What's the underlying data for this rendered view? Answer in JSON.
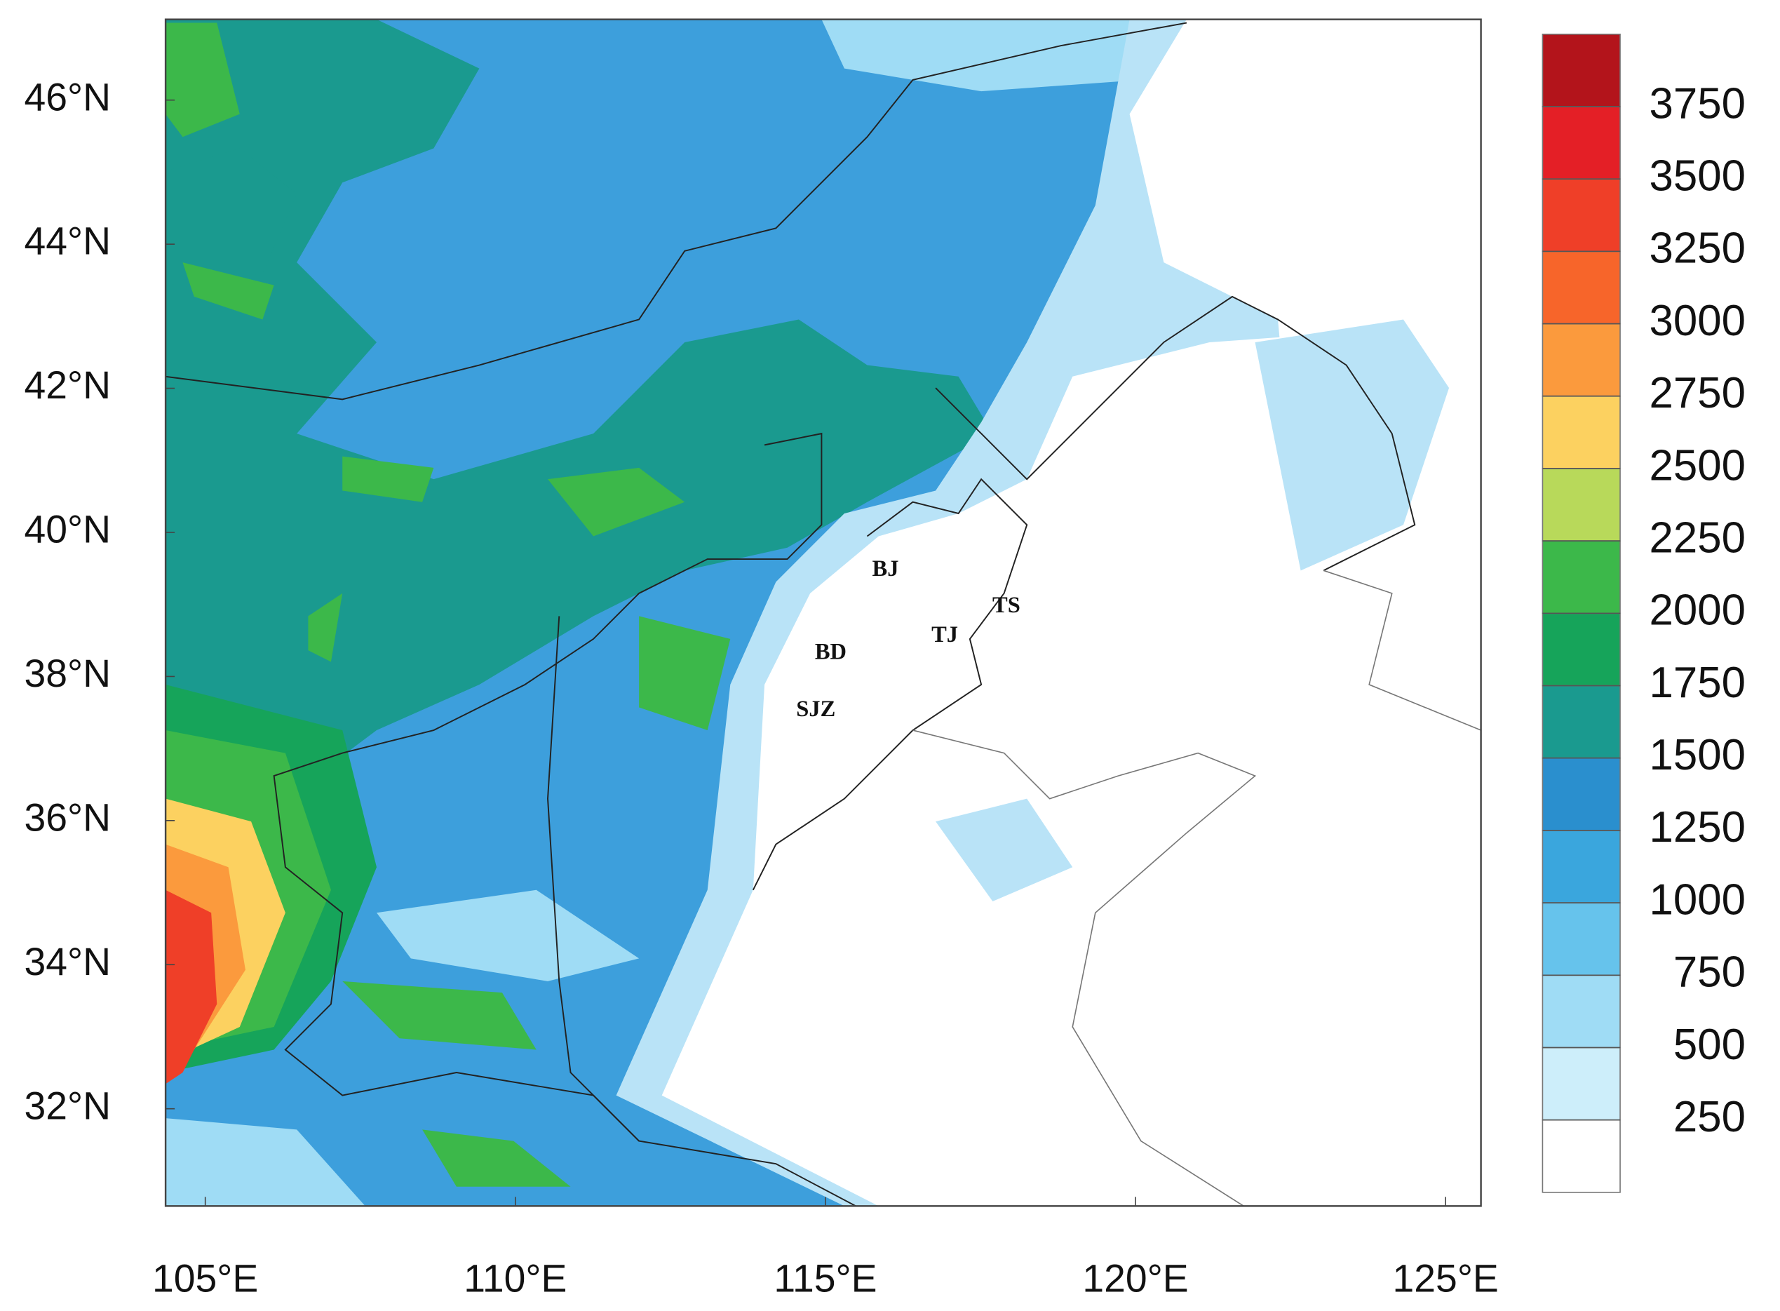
{
  "map": {
    "xlim": [
      104.36,
      125.57
    ],
    "ylim": [
      30.65,
      47.12
    ],
    "lon_ticks": [
      {
        "value": 105,
        "label": "105°E"
      },
      {
        "value": 110,
        "label": "110°E"
      },
      {
        "value": 115,
        "label": "115°E"
      },
      {
        "value": 120,
        "label": "120°E"
      },
      {
        "value": 125,
        "label": "125°E"
      }
    ],
    "lat_ticks": [
      {
        "value": 32,
        "label": "32°N"
      },
      {
        "value": 34,
        "label": "34°N"
      },
      {
        "value": 36,
        "label": "36°N"
      },
      {
        "value": 38,
        "label": "38°N"
      },
      {
        "value": 40,
        "label": "40°N"
      },
      {
        "value": 42,
        "label": "42°N"
      },
      {
        "value": 44,
        "label": "44°N"
      },
      {
        "value": 46,
        "label": "46°N"
      }
    ],
    "cities": [
      "BJ",
      "TS",
      "TJ",
      "BD",
      "SJZ"
    ],
    "colorbar": {
      "levels": [
        250,
        500,
        750,
        1000,
        1250,
        1500,
        1750,
        2000,
        2250,
        2500,
        2750,
        3000,
        3250,
        3500,
        3750
      ],
      "colors": [
        "#ffffff",
        "#cdeefa",
        "#9fdcf5",
        "#66c3ec",
        "#3aa6dd",
        "#2a8fce",
        "#1a9a8f",
        "#16a45a",
        "#3cb84a",
        "#b8d95a",
        "#fcd160",
        "#fb9a3d",
        "#f7652a",
        "#ef3f28",
        "#e41f26",
        "#b3141b"
      ]
    }
  }
}
